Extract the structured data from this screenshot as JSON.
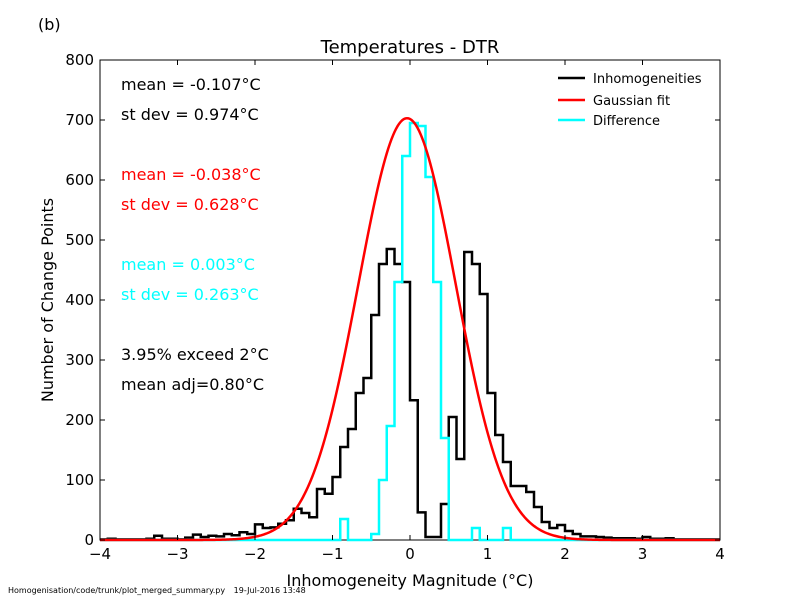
{
  "panel_label": "(b)",
  "footer": {
    "path": "Homogenisation/code/trunk/plot_merged_summary.py",
    "date": "19-Jul-2016 13:48"
  },
  "colors": {
    "inhomogeneities": "#000000",
    "gaussian": "#ff0000",
    "difference": "#00ffff"
  },
  "chart_data": {
    "type": "histogram",
    "title": "Temperatures - DTR",
    "xlabel": "Inhomogeneity Magnitude (°C)",
    "ylabel": "Number of Change Points",
    "xlim": [
      -4,
      4
    ],
    "ylim": [
      0,
      800
    ],
    "xticks": [
      -4,
      -3,
      -2,
      -1,
      0,
      1,
      2,
      3,
      4
    ],
    "xtick_labels": [
      "−4",
      "−3",
      "−2",
      "−1",
      "0",
      "1",
      "2",
      "3",
      "4"
    ],
    "yticks": [
      0,
      100,
      200,
      300,
      400,
      500,
      600,
      700,
      800
    ],
    "bin_width": 0.1,
    "bin_start": -4.0,
    "legend_position": "top-right",
    "legend": [
      "Inhomogeneities",
      "Gaussian fit",
      "Difference"
    ],
    "series": [
      {
        "name": "Inhomogeneities",
        "values": [
          1,
          2,
          1,
          1,
          1,
          1,
          2,
          7,
          2,
          2,
          1,
          4,
          9,
          5,
          7,
          6,
          10,
          8,
          13,
          10,
          26,
          20,
          21,
          27,
          33,
          52,
          45,
          38,
          85,
          77,
          105,
          155,
          185,
          245,
          270,
          375,
          460,
          485,
          460,
          430,
          233,
          46,
          5,
          5,
          60,
          205,
          135,
          480,
          460,
          410,
          245,
          175,
          130,
          90,
          90,
          80,
          55,
          30,
          20,
          25,
          15,
          10,
          6,
          6,
          5,
          4,
          3,
          3,
          3,
          2,
          5,
          2,
          2,
          3,
          1,
          1,
          1,
          1,
          1,
          1
        ]
      },
      {
        "name": "Gaussian fit",
        "type": "line",
        "mean": -0.038,
        "std": 0.628,
        "peak": 703
      },
      {
        "name": "Difference",
        "values": [
          0,
          0,
          0,
          0,
          0,
          0,
          0,
          0,
          0,
          0,
          0,
          0,
          0,
          0,
          0,
          0,
          0,
          0,
          0,
          0,
          0,
          0,
          0,
          0,
          0,
          0,
          0,
          0,
          0,
          0,
          0,
          35,
          0,
          0,
          0,
          10,
          100,
          190,
          430,
          640,
          695,
          690,
          605,
          430,
          170,
          0,
          0,
          0,
          20,
          0,
          0,
          0,
          20,
          0,
          0,
          0,
          0,
          0,
          0,
          0,
          0,
          0,
          0,
          0,
          0,
          0,
          0,
          0,
          0,
          0,
          0,
          0,
          0,
          0,
          0,
          0,
          0,
          0,
          0,
          0
        ]
      }
    ],
    "annotations": [
      {
        "text": "mean = -0.107°C",
        "color": "#000000"
      },
      {
        "text": "st dev =  0.974°C",
        "color": "#000000"
      },
      {
        "text": "mean = -0.038°C",
        "color": "#ff0000"
      },
      {
        "text": "st dev =  0.628°C",
        "color": "#ff0000"
      },
      {
        "text": "mean =  0.003°C",
        "color": "#00ffff"
      },
      {
        "text": "st dev =  0.263°C",
        "color": "#00ffff"
      },
      {
        "text": "3.95% exceed 2°C",
        "color": "#000000"
      },
      {
        "text": "mean adj=0.80°C",
        "color": "#000000"
      }
    ]
  }
}
